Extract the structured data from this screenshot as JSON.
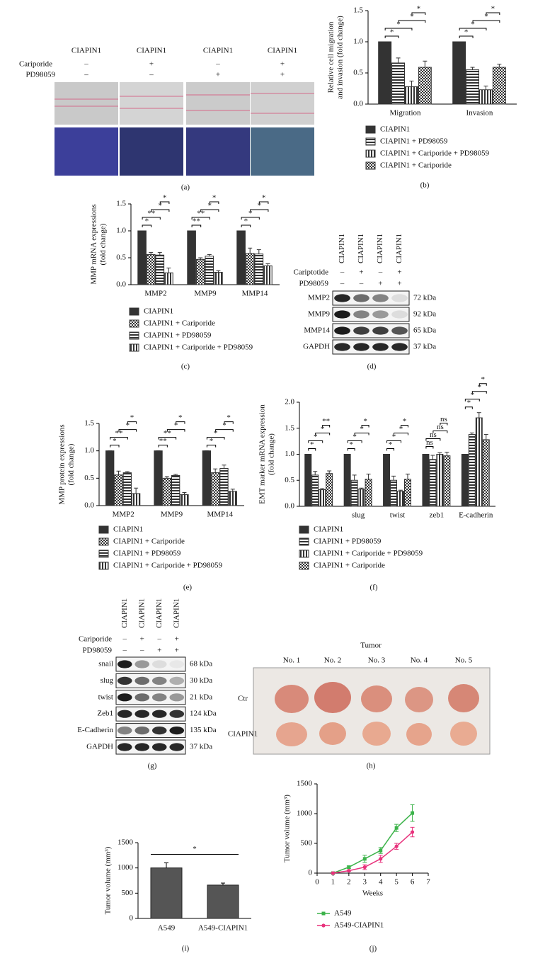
{
  "wound_assay": {
    "panel_label": "(a)",
    "columns": [
      "CIAPIN1",
      "CIAPIN1",
      "CIAPIN1",
      "CIAPIN1"
    ],
    "rows": [
      {
        "name": "Cariporide",
        "values": [
          "–",
          "+",
          "–",
          "+"
        ]
      },
      {
        "name": "PD98059",
        "values": [
          "–",
          "–",
          "+",
          "+"
        ]
      }
    ]
  },
  "blot_d": {
    "panel_label": "(d)",
    "columns": [
      "CIAPIN1",
      "CIAPIN1",
      "CIAPIN1",
      "CIAPIN1"
    ],
    "rows": [
      {
        "name": "Cariptotide",
        "values": [
          "–",
          "+",
          "–",
          "+"
        ]
      },
      {
        "name": "PD98059",
        "values": [
          "–",
          "–",
          "+",
          "+"
        ]
      }
    ],
    "bands": [
      {
        "name": "MMP2",
        "size": "72 kDa"
      },
      {
        "name": "MMP9",
        "size": "92 kDa"
      },
      {
        "name": "MMP14",
        "size": "65 kDa"
      },
      {
        "name": "GAPDH",
        "size": "37 kDa"
      }
    ]
  },
  "blot_g": {
    "panel_label": "(g)",
    "columns": [
      "CIAPIN1",
      "CIAPIN1",
      "CIAPIN1",
      "CIAPIN1"
    ],
    "rows": [
      {
        "name": "Cariporide",
        "values": [
          "–",
          "+",
          "–",
          "+"
        ]
      },
      {
        "name": "PD98059",
        "values": [
          "–",
          "–",
          "+",
          "+"
        ]
      }
    ],
    "bands": [
      {
        "name": "snail",
        "size": "68 kDa"
      },
      {
        "name": "slug",
        "size": "30 kDa"
      },
      {
        "name": "twist",
        "size": "21 kDa"
      },
      {
        "name": "Zeb1",
        "size": "124 kDa"
      },
      {
        "name": "E-Cadherin",
        "size": "135 kDa"
      },
      {
        "name": "GAPDH",
        "size": "37 kDa"
      }
    ]
  },
  "tumor_photo": {
    "panel_label": "(h)",
    "title": "Tumor",
    "columns": [
      "No. 1",
      "No. 2",
      "No. 3",
      "No. 4",
      "No. 5"
    ],
    "rows": [
      "Ctr",
      "CIAPIN1"
    ]
  },
  "chart_data": [
    {
      "type": "bar",
      "panel_label": "(b)",
      "ylabel": [
        "Relative cell migration",
        "and invasion (fold change)"
      ],
      "categories": [
        "Migration",
        "Invasion"
      ],
      "series": [
        {
          "name": "CIAPIN1",
          "pattern": "solid",
          "color": "#333333",
          "values": [
            1.0,
            1.0
          ],
          "errors": [
            0,
            0
          ]
        },
        {
          "name": "CIAPIN1 + PD98059",
          "pattern": "hstripe",
          "color": "#333333",
          "values": [
            0.66,
            0.55
          ],
          "errors": [
            0.08,
            0.04
          ]
        },
        {
          "name": "CIAPIN1 + Cariporide + PD98059",
          "pattern": "vstripe",
          "color": "#333333",
          "values": [
            0.28,
            0.23
          ],
          "errors": [
            0.09,
            0.06
          ]
        },
        {
          "name": "CIAPIN1 + Cariporide",
          "pattern": "checker",
          "color": "#333333",
          "values": [
            0.59,
            0.59
          ],
          "errors": [
            0.1,
            0.05
          ]
        }
      ],
      "ylim": [
        0,
        1.5
      ],
      "yticks": [
        {
          "value": 0,
          "label": "0.0"
        },
        0.5,
        {
          "value": 1,
          "label": "1.0"
        },
        1.5
      ],
      "significance": [
        [
          "*",
          "*",
          "*",
          "*"
        ],
        [
          "*",
          "*",
          "*",
          "*"
        ]
      ]
    },
    {
      "type": "bar",
      "panel_label": "(c)",
      "ylabel": [
        "MMP mRNA expressions",
        "(fold change)"
      ],
      "categories": [
        "MMP2",
        "MMP9",
        "MMP14"
      ],
      "series": [
        {
          "name": "CIAPIN1",
          "pattern": "solid",
          "color": "#333333",
          "values": [
            1.0,
            1.0,
            1.0
          ],
          "errors": [
            0,
            0,
            0
          ]
        },
        {
          "name": "CIAPIN1 + Cariporide",
          "pattern": "checker",
          "color": "#333333",
          "values": [
            0.56,
            0.47,
            0.58
          ],
          "errors": [
            0.04,
            0.03,
            0.1
          ]
        },
        {
          "name": "CIAPIN1 + PD98059",
          "pattern": "hstripe",
          "color": "#333333",
          "values": [
            0.55,
            0.53,
            0.57
          ],
          "errors": [
            0.05,
            0.03,
            0.08
          ]
        },
        {
          "name": "CIAPIN1 + Cariporide + PD98059",
          "pattern": "vstripe",
          "color": "#333333",
          "values": [
            0.22,
            0.23,
            0.35
          ],
          "errors": [
            0.09,
            0.03,
            0.04
          ]
        }
      ],
      "ylim": [
        0,
        1.5
      ],
      "yticks": [
        {
          "value": 0,
          "label": "0.0"
        },
        0.5,
        {
          "value": 1,
          "label": "1.0"
        },
        1.5
      ],
      "significance": [
        [
          "*",
          "**",
          "*",
          "*"
        ],
        [
          "**",
          "**",
          "*",
          "*"
        ],
        [
          "*",
          "*",
          "*",
          "*"
        ]
      ]
    },
    {
      "type": "bar",
      "panel_label": "(e)",
      "ylabel": [
        "MMP protein expressions",
        "(fold change)"
      ],
      "categories": [
        "MMP2",
        "MMP9",
        "MMP14"
      ],
      "series": [
        {
          "name": "CIAPIN1",
          "pattern": "solid",
          "color": "#333333",
          "values": [
            1.0,
            1.0,
            1.0
          ],
          "errors": [
            0,
            0,
            0
          ]
        },
        {
          "name": "CIAPIN1 + Cariporide",
          "pattern": "checker",
          "color": "#333333",
          "values": [
            0.56,
            0.5,
            0.6
          ],
          "errors": [
            0.07,
            0.03,
            0.07
          ]
        },
        {
          "name": "CIAPIN1 + PD98059",
          "pattern": "hstripe",
          "color": "#333333",
          "values": [
            0.6,
            0.55,
            0.68
          ],
          "errors": [
            0.02,
            0.02,
            0.06
          ]
        },
        {
          "name": "CIAPIN1 + Cariporide + PD98059",
          "pattern": "vstripe",
          "color": "#333333",
          "values": [
            0.22,
            0.2,
            0.26
          ],
          "errors": [
            0.1,
            0.04,
            0.04
          ]
        }
      ],
      "ylim": [
        0,
        1.5
      ],
      "yticks": [
        {
          "value": 0,
          "label": "0.0"
        },
        0.5,
        {
          "value": 1,
          "label": "1.0"
        },
        1.5
      ],
      "significance": [
        [
          "*",
          "**",
          "*",
          "*"
        ],
        [
          "**",
          "**",
          "*",
          "*"
        ],
        [
          "*",
          "*",
          "*",
          "*"
        ]
      ]
    },
    {
      "type": "bar",
      "panel_label": "(f)",
      "ylabel": [
        "EMT marker mRNA expression",
        "(fold change)"
      ],
      "categories": [
        null,
        "slug",
        "twist",
        "zeb1",
        "E-cadherin"
      ],
      "series": [
        {
          "name": "CIAPIN1",
          "pattern": "solid",
          "color": "#333333",
          "values": [
            1.0,
            1.0,
            1.0,
            1.0,
            1.0
          ],
          "errors": [
            0,
            0,
            0,
            0,
            0
          ]
        },
        {
          "name": "CIAPIN1 + PD98059",
          "pattern": "hstripe",
          "color": "#333333",
          "values": [
            0.6,
            0.5,
            0.5,
            0.9,
            1.38
          ],
          "errors": [
            0.07,
            0.1,
            0.08,
            0.08,
            0.03
          ]
        },
        {
          "name": "CIAPIN1 + Cariporide + PD98059",
          "pattern": "vstripe",
          "color": "#333333",
          "values": [
            0.32,
            0.33,
            0.29,
            1.0,
            1.7
          ],
          "errors": [
            0.02,
            0.02,
            0.02,
            0.03,
            0.1
          ]
        },
        {
          "name": "CIAPIN1 + Cariporide",
          "pattern": "checker",
          "color": "#333333",
          "values": [
            0.63,
            0.52,
            0.52,
            0.97,
            1.28
          ],
          "errors": [
            0.05,
            0.1,
            0.1,
            0.07,
            0.1
          ]
        }
      ],
      "ylim": [
        0,
        2
      ],
      "yticks": [
        {
          "value": 0,
          "label": "0.0"
        },
        0.5,
        {
          "value": 1,
          "label": "1.0"
        },
        1.5,
        {
          "value": 2,
          "label": "2.0"
        }
      ],
      "significance": [
        [
          "*",
          "*",
          "*",
          "**"
        ],
        [
          "*",
          "*",
          "*",
          "*"
        ],
        [
          "*",
          "*",
          "*",
          "*"
        ],
        [
          "ns",
          "ns",
          "ns",
          "ns"
        ],
        [
          "*",
          "*",
          "*",
          "*"
        ]
      ]
    },
    {
      "type": "bar",
      "panel_label": "(i)",
      "ylabel": [
        "Tumor volume (mm³)"
      ],
      "categories": [
        "A549",
        "A549-CIAPIN1"
      ],
      "values": [
        1000,
        660
      ],
      "errors": [
        100,
        40
      ],
      "color": "#555555",
      "ylim": [
        0,
        1500
      ],
      "yticks": [
        0,
        500,
        1000,
        1500
      ],
      "significance": [
        "*"
      ]
    },
    {
      "type": "line",
      "panel_label": "(j)",
      "ylabel": [
        "Tumor volume (mm³)"
      ],
      "xlabel": "Weeks",
      "x": [
        1,
        2,
        3,
        4,
        5,
        6
      ],
      "series": [
        {
          "name": "A549",
          "color": "#3cb34a",
          "values": [
            0,
            100,
            240,
            380,
            760,
            1010
          ],
          "errors": [
            10,
            20,
            60,
            50,
            60,
            140
          ]
        },
        {
          "name": "A549-CIAPIN1",
          "color": "#e8327c",
          "values": [
            0,
            40,
            100,
            240,
            450,
            690
          ],
          "errors": [
            10,
            10,
            40,
            60,
            50,
            80
          ]
        }
      ],
      "xlim": [
        0,
        7
      ],
      "xticks": [
        0,
        1,
        2,
        3,
        4,
        5,
        6,
        7
      ],
      "ylim": [
        0,
        1500
      ],
      "yticks": [
        0,
        500,
        1000,
        1500
      ]
    }
  ]
}
